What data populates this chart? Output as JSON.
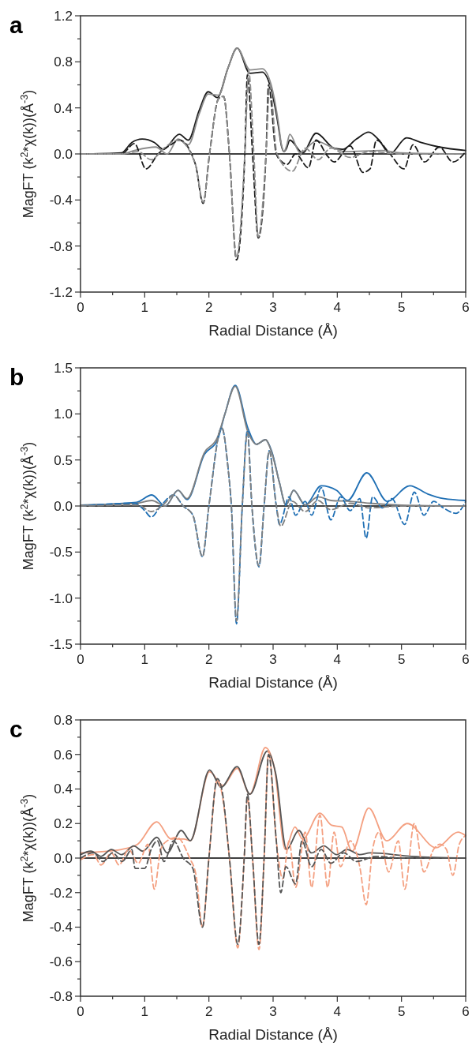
{
  "chart_data": [
    {
      "type": "line",
      "title": "a",
      "xlabel": "Radial Distance (Å)",
      "ylabel": "MagFT (k$^{2}$*χ(k))(Å$^{-3}$)",
      "xlim": [
        0,
        6
      ],
      "ylim": [
        -1.2,
        1.2
      ],
      "xticks": [
        0,
        {
          "value": 0.5,
          "label": null
        },
        1,
        {
          "value": 1.5,
          "label": null
        },
        2,
        {
          "value": 2.5,
          "label": null
        },
        3,
        {
          "value": 3.5,
          "label": null
        },
        4,
        {
          "value": 4.5,
          "label": null
        },
        5,
        {
          "value": 5.5,
          "label": null
        },
        6
      ],
      "yticks": [
        -1.2,
        {
          "value": -1,
          "label": null
        },
        -0.8,
        {
          "value": -0.6,
          "label": null
        },
        -0.4,
        {
          "value": -0.2,
          "label": null
        },
        {
          "value": 0,
          "label": "0.0"
        },
        {
          "value": 0.2,
          "label": null
        },
        0.4,
        {
          "value": 0.6,
          "label": null
        },
        0.8,
        {
          "value": 1,
          "label": null
        },
        1.2
      ],
      "line_style": "solid",
      "marker": "none",
      "ref_lines": [
        {
          "axis": "y",
          "value": 0,
          "color": "#000000"
        }
      ],
      "series": [
        {
          "color": "#1a1a1a",
          "x": [
            0,
            0.64,
            0.8,
            0.96,
            1.15,
            1.29,
            1.54,
            1.68,
            1.85,
            1.99,
            2.13,
            2.3,
            2.44,
            2.64,
            2.83,
            2.97,
            3.08,
            3.13,
            3.17,
            3.21,
            3.26,
            3.46,
            3.67,
            3.95,
            4.08,
            4.3,
            4.49,
            4.65,
            4.82,
            5.08,
            5.3,
            5.59,
            6
          ],
          "values": [
            0,
            0.01,
            0.1,
            0.13,
            0.1,
            0.04,
            0.17,
            0.12,
            0.38,
            0.54,
            0.49,
            0.75,
            0.92,
            0.7,
            0.71,
            0.56,
            0.25,
            0.07,
            0.02,
            0.05,
            0.12,
            0.01,
            0.18,
            0.05,
            0.04,
            0.13,
            0.19,
            0.12,
            0,
            0.14,
            0.1,
            0.06,
            0.03
          ]
        },
        {
          "color": "#8c8c8c",
          "x": [
            0,
            0.64,
            0.84,
            1.17,
            1.35,
            1.52,
            1.68,
            1.85,
            1.99,
            2.15,
            2.3,
            2.44,
            2.64,
            2.83,
            2.97,
            3.08,
            3.13,
            3.17,
            3.21,
            3.26,
            3.42,
            3.67,
            3.91,
            4.12,
            4.69,
            4.98,
            6
          ],
          "values": [
            0,
            0,
            0.03,
            0.06,
            0,
            0.13,
            0.08,
            0.35,
            0.52,
            0.51,
            0.75,
            0.92,
            0.73,
            0.74,
            0.6,
            0.28,
            0.08,
            0.02,
            0.07,
            0.17,
            0.01,
            0.11,
            0.06,
            0.02,
            0.03,
            0.01,
            0
          ]
        },
        {
          "color": "#1a1a1a",
          "line_style": "dashed",
          "x": [
            0,
            0.64,
            0.84,
            1.02,
            1.21,
            1.41,
            1.54,
            1.79,
            1.91,
            2.01,
            2.15,
            2.23,
            2.32,
            2.43,
            2.56,
            2.6,
            2.68,
            2.77,
            2.89,
            2.93,
            3.05,
            3.14,
            3.22,
            3.35,
            3.55,
            3.67,
            3.85,
            3.95,
            4.2,
            4.4,
            4.51,
            4.61,
            4.82,
            5.04,
            5.18,
            5.36,
            5.59,
            5.8,
            6
          ],
          "values": [
            0,
            0,
            0.09,
            -0.13,
            0,
            0.08,
            0.12,
            -0.09,
            -0.43,
            0,
            0.48,
            0.5,
            0,
            -0.92,
            0,
            0.69,
            0,
            -0.73,
            0,
            0.6,
            0,
            -0.07,
            -0.09,
            0,
            -0.12,
            0.12,
            -0.02,
            -0.07,
            0.07,
            -0.16,
            -0.13,
            0.12,
            0,
            -0.13,
            0.08,
            -0.07,
            0.06,
            -0.07,
            0.02
          ]
        },
        {
          "color": "#8c8c8c",
          "line_style": "dashed",
          "x": [
            0,
            0.64,
            0.9,
            1.1,
            1.3,
            1.52,
            1.79,
            1.91,
            2.01,
            2.15,
            2.23,
            2.32,
            2.43,
            2.56,
            2.62,
            2.7,
            2.77,
            2.89,
            2.95,
            3.06,
            3.3,
            3.5,
            3.7,
            3.9,
            4.2,
            4.5,
            5,
            6
          ],
          "values": [
            0,
            0,
            0.02,
            -0.05,
            0.05,
            0.12,
            -0.09,
            -0.42,
            0,
            0.48,
            0.5,
            0,
            -0.9,
            0,
            0.72,
            0,
            -0.72,
            0,
            0.6,
            0,
            -0.15,
            0.05,
            -0.05,
            0.05,
            -0.03,
            0.02,
            0,
            0
          ]
        }
      ]
    },
    {
      "type": "line",
      "title": "b",
      "xlabel": "Radial Distance (Å)",
      "ylabel": "MagFT (k$^{2}$*χ(k))(Å$^{-3}$)",
      "xlim": [
        0,
        6
      ],
      "ylim": [
        -1.5,
        1.5
      ],
      "xticks": [
        0,
        {
          "value": 0.5,
          "label": null
        },
        1,
        {
          "value": 1.5,
          "label": null
        },
        2,
        {
          "value": 2.5,
          "label": null
        },
        3,
        {
          "value": 3.5,
          "label": null
        },
        4,
        {
          "value": 4.5,
          "label": null
        },
        5,
        {
          "value": 5.5,
          "label": null
        },
        6
      ],
      "yticks": [
        -1.5,
        {
          "value": -1.25,
          "label": null
        },
        {
          "value": -1,
          "label": "-1.0"
        },
        {
          "value": -0.75,
          "label": null
        },
        -0.5,
        {
          "value": -0.25,
          "label": null
        },
        {
          "value": 0,
          "label": "0.0"
        },
        {
          "value": 0.25,
          "label": null
        },
        0.5,
        {
          "value": 0.75,
          "label": null
        },
        {
          "value": 1,
          "label": "1.0"
        },
        {
          "value": 1.25,
          "label": null
        },
        1.5
      ],
      "line_style": "solid",
      "marker": "none",
      "ref_lines": [
        {
          "axis": "y",
          "value": 0,
          "color": "#000000"
        }
      ],
      "series": [
        {
          "color": "#1f6fb4",
          "x": [
            0,
            0.87,
            1.11,
            1.32,
            1.52,
            1.66,
            1.93,
            2.13,
            2.25,
            2.41,
            2.61,
            2.74,
            2.88,
            2.98,
            3.1,
            3.2,
            3.32,
            3.5,
            3.75,
            3.99,
            4.16,
            4.46,
            4.78,
            5.13,
            5.41,
            5.66,
            6
          ],
          "values": [
            0.01,
            0.04,
            0.12,
            0,
            0.17,
            0.07,
            0.56,
            0.71,
            1.0,
            1.31,
            0.84,
            0.67,
            0.72,
            0.59,
            0.25,
            0.01,
            0.17,
            0.01,
            0.22,
            0.17,
            0.06,
            0.36,
            0.05,
            0.22,
            0.13,
            0.08,
            0.06
          ]
        },
        {
          "color": "#808080",
          "x": [
            0,
            0.87,
            1.11,
            1.32,
            1.52,
            1.66,
            1.93,
            2.13,
            2.25,
            2.41,
            2.61,
            2.74,
            2.88,
            2.98,
            3.1,
            3.2,
            3.32,
            3.5,
            3.7,
            3.9,
            4.2,
            4.5,
            5,
            6
          ],
          "values": [
            0.01,
            0.03,
            0.06,
            0,
            0.17,
            0.08,
            0.58,
            0.74,
            1.0,
            1.3,
            0.8,
            0.67,
            0.72,
            0.58,
            0.25,
            0.01,
            0.17,
            0.01,
            0.1,
            0.06,
            0.05,
            0.03,
            0.01,
            0
          ]
        },
        {
          "color": "#1f6fb4",
          "line_style": "dashed",
          "x": [
            0,
            0.85,
            1.0,
            1.1,
            1.25,
            1.45,
            1.6,
            1.75,
            1.9,
            2.0,
            2.2,
            2.3,
            2.35,
            2.43,
            2.52,
            2.6,
            2.67,
            2.78,
            2.86,
            2.94,
            3.05,
            3.1,
            3.25,
            3.35,
            3.5,
            3.6,
            3.75,
            3.9,
            4.05,
            4.2,
            4.35,
            4.45,
            4.55,
            4.7,
            4.85,
            5.05,
            5.2,
            5.35,
            5.5,
            5.65,
            5.85,
            6
          ],
          "values": [
            0,
            0.03,
            -0.05,
            -0.12,
            0,
            0.12,
            0,
            -0.1,
            -0.55,
            0,
            0.85,
            0.4,
            0,
            -1.28,
            0,
            0.82,
            0,
            -0.66,
            0,
            0.6,
            0,
            -0.2,
            0.1,
            -0.1,
            0.05,
            -0.1,
            0.2,
            -0.15,
            0.1,
            -0.05,
            0.08,
            -0.35,
            0.1,
            -0.02,
            0.08,
            -0.2,
            0.15,
            -0.1,
            0.05,
            -0.02,
            -0.08,
            0.05
          ]
        },
        {
          "color": "#808080",
          "line_style": "dashed",
          "x": [
            0,
            0.9,
            1.1,
            1.3,
            1.45,
            1.6,
            1.75,
            1.9,
            2.0,
            2.2,
            2.3,
            2.35,
            2.43,
            2.52,
            2.6,
            2.67,
            2.78,
            2.86,
            2.94,
            3.05,
            3.12,
            3.3,
            3.5,
            3.7,
            3.9,
            4.2,
            4.5,
            5,
            6
          ],
          "values": [
            0,
            0.01,
            -0.06,
            0.02,
            0.12,
            0,
            -0.1,
            -0.55,
            0,
            0.85,
            0.4,
            0,
            -1.25,
            0,
            0.8,
            0,
            -0.65,
            0,
            0.6,
            0,
            -0.22,
            0.05,
            -0.06,
            0.06,
            -0.04,
            0.03,
            -0.02,
            0,
            0
          ]
        }
      ]
    },
    {
      "type": "line",
      "title": "c",
      "xlabel": "Radial Distance (Å)",
      "ylabel": "MagFT (k$^{2}$*χ(k))(Å$^{-3}$)",
      "xlim": [
        0,
        6
      ],
      "ylim": [
        -0.8,
        0.8
      ],
      "xticks": [
        0,
        {
          "value": 0.5,
          "label": null
        },
        1,
        {
          "value": 1.5,
          "label": null
        },
        2,
        {
          "value": 2.5,
          "label": null
        },
        3,
        {
          "value": 3.5,
          "label": null
        },
        4,
        {
          "value": 4.5,
          "label": null
        },
        5,
        {
          "value": 5.5,
          "label": null
        },
        6
      ],
      "yticks": [
        -0.8,
        {
          "value": -0.7,
          "label": null
        },
        -0.6,
        {
          "value": -0.5,
          "label": null
        },
        -0.4,
        {
          "value": -0.3,
          "label": null
        },
        -0.2,
        {
          "value": -0.1,
          "label": null
        },
        {
          "value": 0,
          "label": "0.0"
        },
        {
          "value": 0.1,
          "label": null
        },
        0.2,
        {
          "value": 0.3,
          "label": null
        },
        0.4,
        {
          "value": 0.5,
          "label": null
        },
        0.6,
        {
          "value": 0.7,
          "label": null
        },
        0.8
      ],
      "line_style": "solid",
      "marker": "none",
      "ref_lines": [
        {
          "axis": "y",
          "value": 0,
          "color": "#000000"
        }
      ],
      "series": [
        {
          "color": "#f4a081",
          "x": [
            0,
            0.64,
            0.89,
            1.19,
            1.41,
            1.61,
            1.71,
            2.01,
            2.22,
            2.44,
            2.64,
            2.88,
            3.02,
            3.19,
            3.34,
            3.46,
            3.73,
            3.91,
            4.07,
            4.23,
            4.49,
            4.77,
            5.09,
            5.54,
            5.88,
            6
          ],
          "values": [
            0.03,
            0.05,
            0.08,
            0.21,
            0.11,
            0.11,
            0.1,
            0.5,
            0.42,
            0.52,
            0.37,
            0.64,
            0.52,
            0.05,
            0.18,
            0.11,
            0.26,
            0.19,
            0.18,
            0.04,
            0.29,
            0.1,
            0.2,
            0.06,
            0.15,
            0.13
          ]
        },
        {
          "color": "#555555",
          "x": [
            0,
            0.16,
            0.32,
            0.48,
            0.64,
            0.83,
            0.97,
            1.19,
            1.35,
            1.57,
            1.71,
            2.01,
            2.19,
            2.44,
            2.64,
            2.91,
            3.04,
            3.21,
            3.4,
            3.6,
            3.79,
            3.99,
            4.15,
            4.35,
            4.51,
            5.16,
            6
          ],
          "values": [
            0.02,
            0.04,
            0.01,
            0.05,
            0.02,
            0.07,
            0.04,
            0.12,
            0.03,
            0.16,
            0.1,
            0.51,
            0.41,
            0.53,
            0.37,
            0.62,
            0.49,
            0.05,
            0.16,
            0.03,
            0.07,
            0.02,
            0.05,
            0.02,
            0.03,
            0.01,
            0
          ]
        },
        {
          "color": "#f4a081",
          "line_style": "dashed",
          "x": [
            0,
            0.2,
            0.32,
            0.48,
            0.6,
            0.75,
            0.9,
            1.05,
            1.15,
            1.25,
            1.35,
            1.5,
            1.7,
            1.8,
            1.9,
            2.0,
            2.13,
            2.2,
            2.32,
            2.45,
            2.55,
            2.6,
            2.68,
            2.78,
            2.86,
            2.93,
            3.05,
            3.15,
            3.25,
            3.35,
            3.5,
            3.6,
            3.73,
            3.85,
            3.95,
            4.05,
            4.2,
            4.35,
            4.45,
            4.55,
            4.65,
            4.8,
            4.95,
            5.05,
            5.2,
            5.35,
            5.5,
            5.6,
            5.7,
            5.8,
            5.9,
            6
          ],
          "values": [
            -0.01,
            0.02,
            -0.04,
            0.03,
            -0.04,
            0.05,
            -0.03,
            0.08,
            -0.18,
            0.05,
            0.1,
            0.12,
            0,
            -0.1,
            -0.4,
            0,
            0.45,
            0.38,
            0,
            -0.52,
            0,
            0.35,
            0,
            -0.53,
            0,
            0.62,
            0.1,
            -0.12,
            0.1,
            -0.17,
            0.15,
            -0.17,
            0.25,
            -0.17,
            0.15,
            -0.05,
            0.1,
            -0.05,
            -0.27,
            0.05,
            0.15,
            -0.08,
            0.1,
            -0.18,
            0.2,
            -0.08,
            0.05,
            0.08,
            0.05,
            -0.1,
            0.08,
            0.13
          ]
        },
        {
          "color": "#555555",
          "line_style": "dashed",
          "x": [
            0,
            0.2,
            0.35,
            0.5,
            0.65,
            0.8,
            0.85,
            1.0,
            1.1,
            1.2,
            1.3,
            1.45,
            1.6,
            1.75,
            1.9,
            2.0,
            2.13,
            2.2,
            2.32,
            2.45,
            2.55,
            2.6,
            2.68,
            2.78,
            2.86,
            2.93,
            3.05,
            3.12,
            3.2,
            3.35,
            3.45,
            3.6,
            3.75,
            3.9,
            4.1,
            4.3,
            4.6,
            5,
            6
          ],
          "values": [
            0,
            0.03,
            -0.02,
            0.03,
            -0.02,
            0.05,
            -0.06,
            -0.06,
            0.05,
            0.1,
            -0.02,
            0.1,
            0,
            -0.06,
            -0.4,
            0,
            0.46,
            0.4,
            0,
            -0.5,
            0,
            0.37,
            0,
            -0.5,
            0,
            0.6,
            0.1,
            -0.2,
            -0.05,
            -0.15,
            0.1,
            -0.05,
            0.05,
            -0.03,
            0.03,
            -0.02,
            0.01,
            0,
            0
          ]
        }
      ]
    }
  ]
}
